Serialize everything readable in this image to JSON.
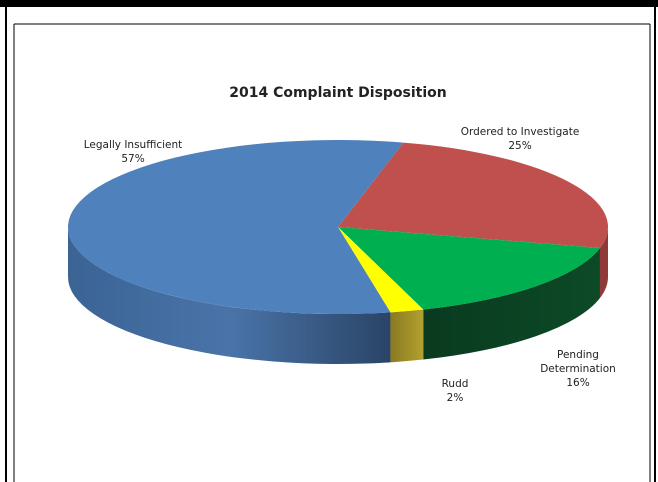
{
  "chart_data": {
    "type": "pie",
    "title": "2014 Complaint Disposition",
    "slices": [
      {
        "label": "Legally Insufficient",
        "percent_label": "57%",
        "value": 57,
        "color": "#4F81BD"
      },
      {
        "label": "Ordered to Investigate",
        "percent_label": "25%",
        "value": 25,
        "color": "#C0504D"
      },
      {
        "label": "Pending Determination",
        "percent_label": "16%",
        "value": 16,
        "color": "#00B050"
      },
      {
        "label": "Rudd",
        "percent_label": "2%",
        "value": 2,
        "color": "#FFFF00"
      }
    ],
    "legend": "none",
    "style": "3d"
  }
}
